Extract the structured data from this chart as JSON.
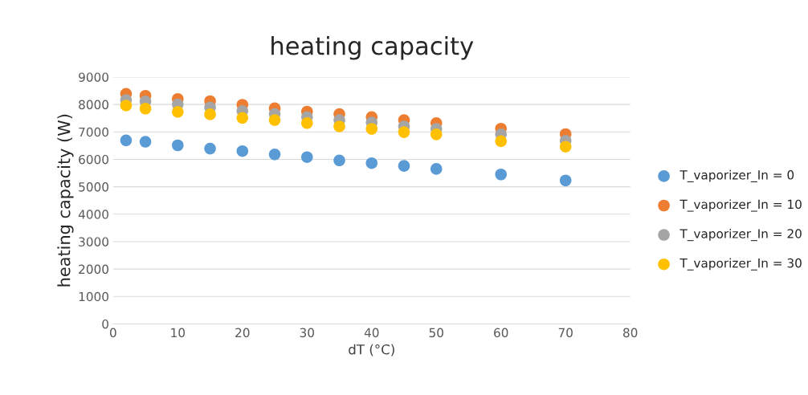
{
  "chart_data": {
    "type": "scatter",
    "title": "heating capacity",
    "xlabel": "dT (°C)",
    "ylabel": "heating capacity (W)",
    "x": [
      2,
      5,
      10,
      15,
      20,
      25,
      30,
      35,
      40,
      45,
      50,
      60,
      70
    ],
    "series": [
      {
        "name": "T_vaporizer_In = 0",
        "color": "#5b9bd5",
        "values": [
          6690,
          6640,
          6510,
          6390,
          6300,
          6180,
          6080,
          5960,
          5860,
          5760,
          5650,
          5450,
          5230
        ]
      },
      {
        "name": "T_vaporizer_In = 10",
        "color": "#ed7d31",
        "values": [
          8390,
          8320,
          8200,
          8120,
          7990,
          7860,
          7740,
          7650,
          7540,
          7430,
          7320,
          7120,
          6920
        ]
      },
      {
        "name": "T_vaporizer_In = 20",
        "color": "#a5a5a5",
        "values": [
          8160,
          8110,
          8000,
          7890,
          7760,
          7650,
          7540,
          7430,
          7340,
          7200,
          7110,
          6910,
          6680
        ]
      },
      {
        "name": "T_vaporizer_In = 30",
        "color": "#ffc000",
        "values": [
          7960,
          7850,
          7730,
          7640,
          7510,
          7430,
          7320,
          7200,
          7110,
          6990,
          6910,
          6660,
          6460
        ]
      }
    ],
    "xlim": [
      0,
      80
    ],
    "xticks": [
      0,
      10,
      20,
      30,
      40,
      50,
      60,
      70,
      80
    ],
    "ylim": [
      0,
      9000
    ],
    "yticks": [
      0,
      1000,
      2000,
      3000,
      4000,
      5000,
      6000,
      7000,
      8000,
      9000
    ],
    "grid": "y",
    "legend": "right",
    "marker": "circle"
  }
}
